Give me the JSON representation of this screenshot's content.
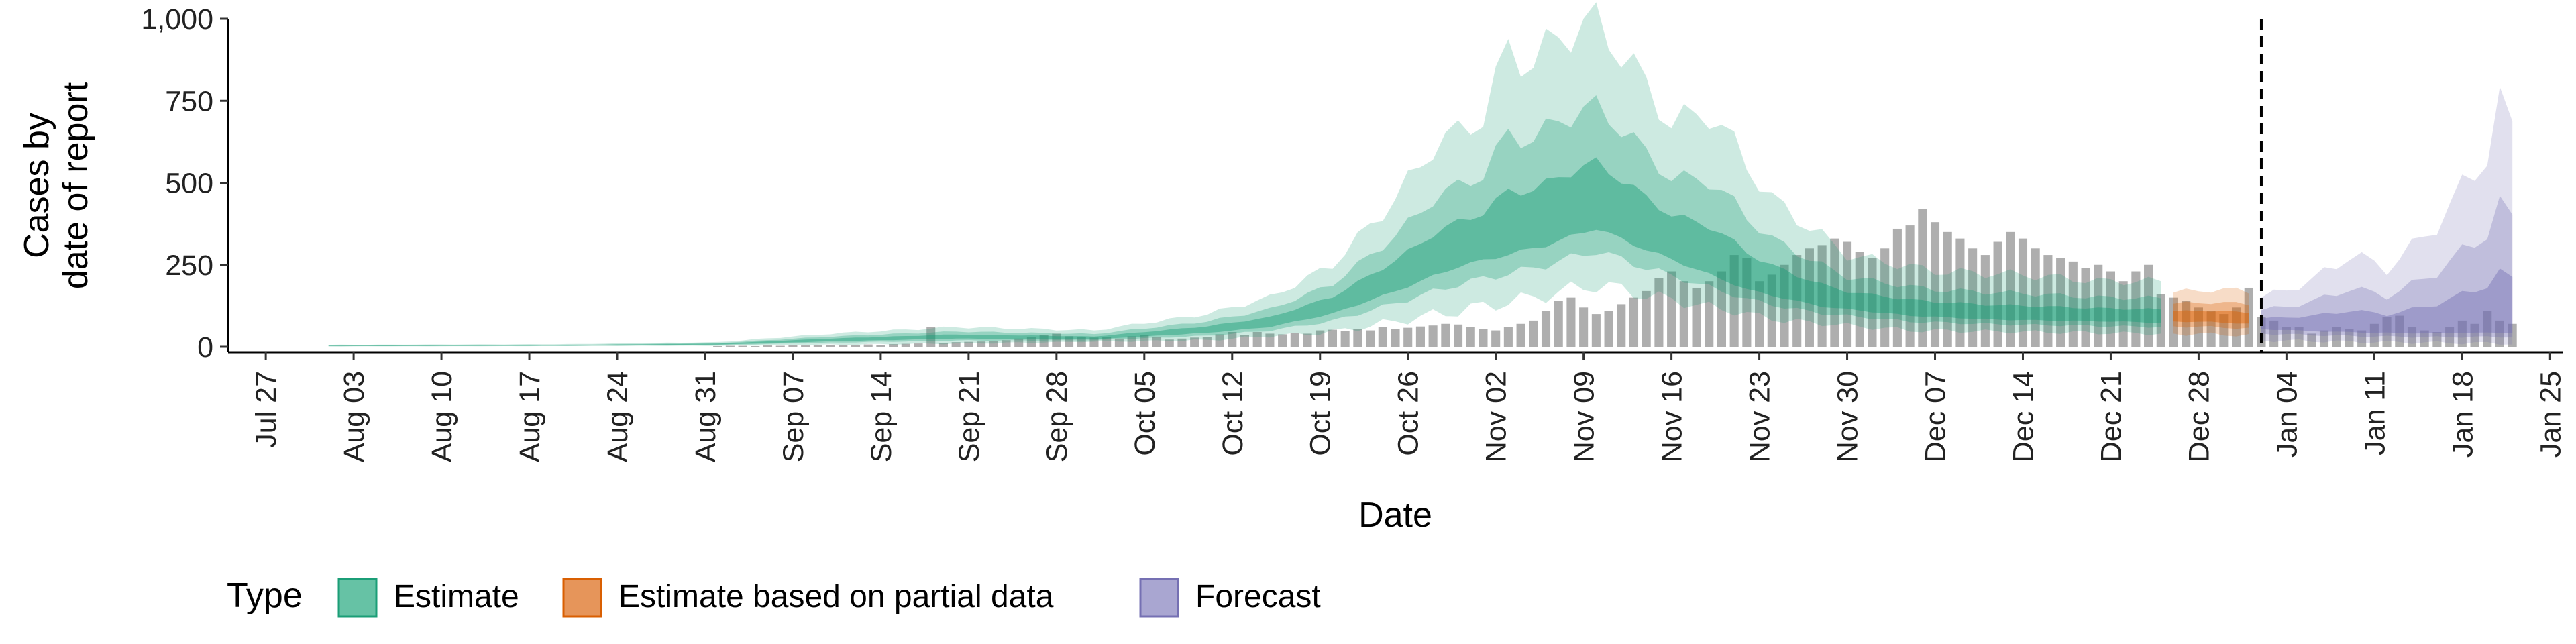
{
  "chart_data": {
    "type": "area",
    "xlabel": "Date",
    "ylabel_lines": [
      "Cases by",
      "date of report"
    ],
    "ylim": [
      0,
      1000
    ],
    "yticks": [
      0,
      250,
      500,
      750,
      1000
    ],
    "ytick_labels": [
      "0",
      "250",
      "500",
      "750",
      "1,000"
    ],
    "xlim": [
      "2020-07-24",
      "2021-01-26"
    ],
    "xticks": [
      "2020-07-27",
      "2020-08-03",
      "2020-08-10",
      "2020-08-17",
      "2020-08-24",
      "2020-08-31",
      "2020-09-07",
      "2020-09-14",
      "2020-09-21",
      "2020-09-28",
      "2020-10-05",
      "2020-10-12",
      "2020-10-19",
      "2020-10-26",
      "2020-11-02",
      "2020-11-09",
      "2020-11-16",
      "2020-11-23",
      "2020-11-30",
      "2020-12-07",
      "2020-12-14",
      "2020-12-21",
      "2020-12-28",
      "2021-01-04",
      "2021-01-11",
      "2021-01-18",
      "2021-01-25"
    ],
    "xtick_labels": [
      "Jul 27",
      "Aug 03",
      "Aug 10",
      "Aug 17",
      "Aug 24",
      "Aug 31",
      "Sep 07",
      "Sep 14",
      "Sep 21",
      "Sep 28",
      "Oct 05",
      "Oct 12",
      "Oct 19",
      "Oct 26",
      "Nov 02",
      "Nov 09",
      "Nov 16",
      "Nov 23",
      "Nov 30",
      "Dec 07",
      "Dec 14",
      "Dec 21",
      "Dec 28",
      "Jan 04",
      "Jan 11",
      "Jan 18",
      "Jan 25"
    ],
    "forecast_date": "2021-01-02",
    "grid": false,
    "legend": {
      "title": "Type",
      "position": "bottom",
      "entries": [
        {
          "label": "Estimate",
          "fill": "#66c2a5",
          "stroke": "#1b9e77"
        },
        {
          "label": "Estimate based on partial data",
          "fill": "#e6955a",
          "stroke": "#d95f02"
        },
        {
          "label": "Forecast",
          "fill": "#a9a6d1",
          "stroke": "#7570b3"
        }
      ]
    },
    "colors": {
      "Estimate": "#1b9e77",
      "Estimate based on partial data": "#d95f02",
      "Forecast": "#7570b3",
      "reported": "#a0a0a0"
    },
    "reported_cases": {
      "start_date": "2020-09-01",
      "values": [
        2,
        3,
        3,
        2,
        4,
        3,
        5,
        4,
        5,
        6,
        5,
        6,
        7,
        6,
        8,
        9,
        10,
        60,
        12,
        14,
        15,
        16,
        18,
        20,
        25,
        30,
        35,
        40,
        32,
        30,
        28,
        30,
        25,
        32,
        36,
        30,
        22,
        25,
        28,
        30,
        38,
        45,
        35,
        45,
        40,
        38,
        42,
        40,
        50,
        52,
        48,
        55,
        50,
        60,
        55,
        58,
        62,
        65,
        70,
        68,
        60,
        55,
        50,
        60,
        70,
        80,
        110,
        140,
        150,
        120,
        100,
        110,
        130,
        150,
        170,
        210,
        230,
        200,
        180,
        200,
        230,
        280,
        270,
        200,
        220,
        250,
        280,
        300,
        310,
        330,
        320,
        290,
        270,
        300,
        360,
        370,
        420,
        380,
        350,
        330,
        300,
        280,
        320,
        350,
        330,
        300,
        280,
        270,
        260,
        240,
        250,
        230,
        200,
        230,
        250,
        160,
        150,
        140,
        120,
        110,
        100,
        120,
        180,
        90,
        80,
        60,
        60,
        40,
        50,
        60,
        55,
        50,
        70,
        90,
        95,
        60,
        50,
        45,
        60,
        80,
        70,
        110,
        80,
        70
      ]
    },
    "series": [
      {
        "name": "Estimate",
        "x_start": "2020-08-01",
        "x_end": "2020-12-25",
        "median_knots": [
          [
            "2020-08-01",
            3
          ],
          [
            "2020-08-20",
            4
          ],
          [
            "2020-09-01",
            8
          ],
          [
            "2020-09-10",
            20
          ],
          [
            "2020-09-20",
            30
          ],
          [
            "2020-10-01",
            25
          ],
          [
            "2020-10-10",
            50
          ],
          [
            "2020-10-15",
            70
          ],
          [
            "2020-10-20",
            120
          ],
          [
            "2020-10-25",
            200
          ],
          [
            "2020-10-30",
            290
          ],
          [
            "2020-11-03",
            330
          ],
          [
            "2020-11-06",
            360
          ],
          [
            "2020-11-10",
            420
          ],
          [
            "2020-11-13",
            360
          ],
          [
            "2020-11-17",
            290
          ],
          [
            "2020-11-22",
            200
          ],
          [
            "2020-11-28",
            140
          ],
          [
            "2020-12-05",
            110
          ],
          [
            "2020-12-12",
            95
          ],
          [
            "2020-12-20",
            90
          ],
          [
            "2020-12-25",
            85
          ]
        ],
        "upper90_knots": [
          [
            "2020-08-01",
            6
          ],
          [
            "2020-08-20",
            8
          ],
          [
            "2020-09-01",
            14
          ],
          [
            "2020-09-10",
            40
          ],
          [
            "2020-09-20",
            60
          ],
          [
            "2020-10-01",
            50
          ],
          [
            "2020-10-10",
            100
          ],
          [
            "2020-10-15",
            150
          ],
          [
            "2020-10-20",
            250
          ],
          [
            "2020-10-25",
            450
          ],
          [
            "2020-10-28",
            610
          ],
          [
            "2020-11-01",
            700
          ],
          [
            "2020-11-03",
            910
          ],
          [
            "2020-11-05",
            860
          ],
          [
            "2020-11-07",
            950
          ],
          [
            "2020-11-10",
            990
          ],
          [
            "2020-11-13",
            850
          ],
          [
            "2020-11-16",
            680
          ],
          [
            "2020-11-19",
            720
          ],
          [
            "2020-11-24",
            450
          ],
          [
            "2020-11-30",
            280
          ],
          [
            "2020-12-07",
            230
          ],
          [
            "2020-12-14",
            220
          ],
          [
            "2020-12-20",
            200
          ],
          [
            "2020-12-25",
            200
          ]
        ],
        "lower90_knots": [
          [
            "2020-08-01",
            1
          ],
          [
            "2020-09-01",
            3
          ],
          [
            "2020-09-20",
            10
          ],
          [
            "2020-10-10",
            20
          ],
          [
            "2020-10-20",
            45
          ],
          [
            "2020-10-30",
            110
          ],
          [
            "2020-11-05",
            150
          ],
          [
            "2020-11-10",
            190
          ],
          [
            "2020-11-15",
            150
          ],
          [
            "2020-11-25",
            80
          ],
          [
            "2020-12-05",
            50
          ],
          [
            "2020-12-25",
            40
          ]
        ]
      },
      {
        "name": "Estimate based on partial data",
        "x_start": "2020-12-26",
        "x_end": "2021-01-01",
        "median_knots": [
          [
            "2020-12-26",
            90
          ],
          [
            "2020-12-29",
            88
          ],
          [
            "2021-01-01",
            82
          ]
        ],
        "upper90_knots": [
          [
            "2020-12-26",
            165
          ],
          [
            "2020-12-29",
            175
          ],
          [
            "2021-01-01",
            170
          ]
        ],
        "lower90_knots": [
          [
            "2020-12-26",
            40
          ],
          [
            "2020-12-29",
            38
          ],
          [
            "2021-01-01",
            35
          ]
        ]
      },
      {
        "name": "Forecast",
        "x_start": "2021-01-02",
        "x_end": "2021-01-22",
        "median_knots": [
          [
            "2021-01-02",
            65
          ],
          [
            "2021-01-08",
            55
          ],
          [
            "2021-01-15",
            50
          ],
          [
            "2021-01-22",
            55
          ]
        ],
        "upper90_knots": [
          [
            "2021-01-02",
            150
          ],
          [
            "2021-01-06",
            200
          ],
          [
            "2021-01-09",
            280
          ],
          [
            "2021-01-12",
            240
          ],
          [
            "2021-01-14",
            300
          ],
          [
            "2021-01-17",
            420
          ],
          [
            "2021-01-20",
            600
          ],
          [
            "2021-01-21",
            730
          ],
          [
            "2021-01-22",
            650
          ]
        ],
        "lower90_knots": [
          [
            "2021-01-02",
            20
          ],
          [
            "2021-01-10",
            15
          ],
          [
            "2021-01-22",
            10
          ]
        ]
      }
    ]
  }
}
